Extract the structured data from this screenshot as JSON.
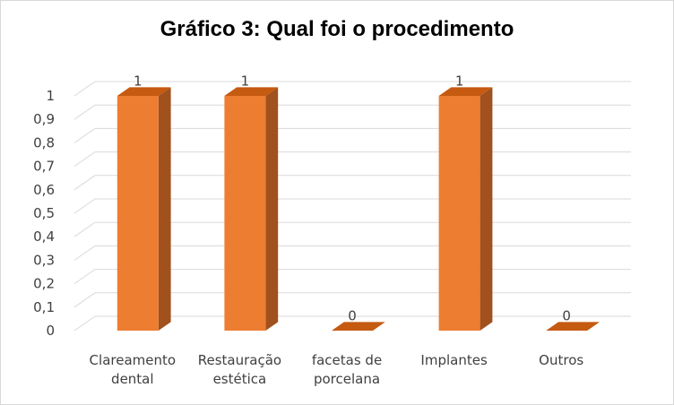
{
  "chart_data": {
    "type": "bar",
    "title": "Gráfico 3: Qual foi o procedimento",
    "categories": [
      [
        "Clareamento",
        "dental"
      ],
      [
        "Restauração",
        "estética"
      ],
      [
        "facetas de",
        "porcelana"
      ],
      [
        "Implantes"
      ],
      [
        "Outros"
      ]
    ],
    "values": [
      1,
      1,
      0,
      1,
      0
    ],
    "data_labels": [
      "1",
      "1",
      "0",
      "1",
      "0"
    ],
    "ylim": [
      0,
      1
    ],
    "yticks": [
      "0",
      "0,1",
      "0,2",
      "0,3",
      "0,4",
      "0,5",
      "0,6",
      "0,7",
      "0,8",
      "0,9",
      "1"
    ],
    "grid": true,
    "style": "3d-column",
    "colors": {
      "front": "#ED7D31",
      "side": "#A0511E",
      "top": "#C55A11",
      "grid": "#D9D9D9"
    }
  }
}
